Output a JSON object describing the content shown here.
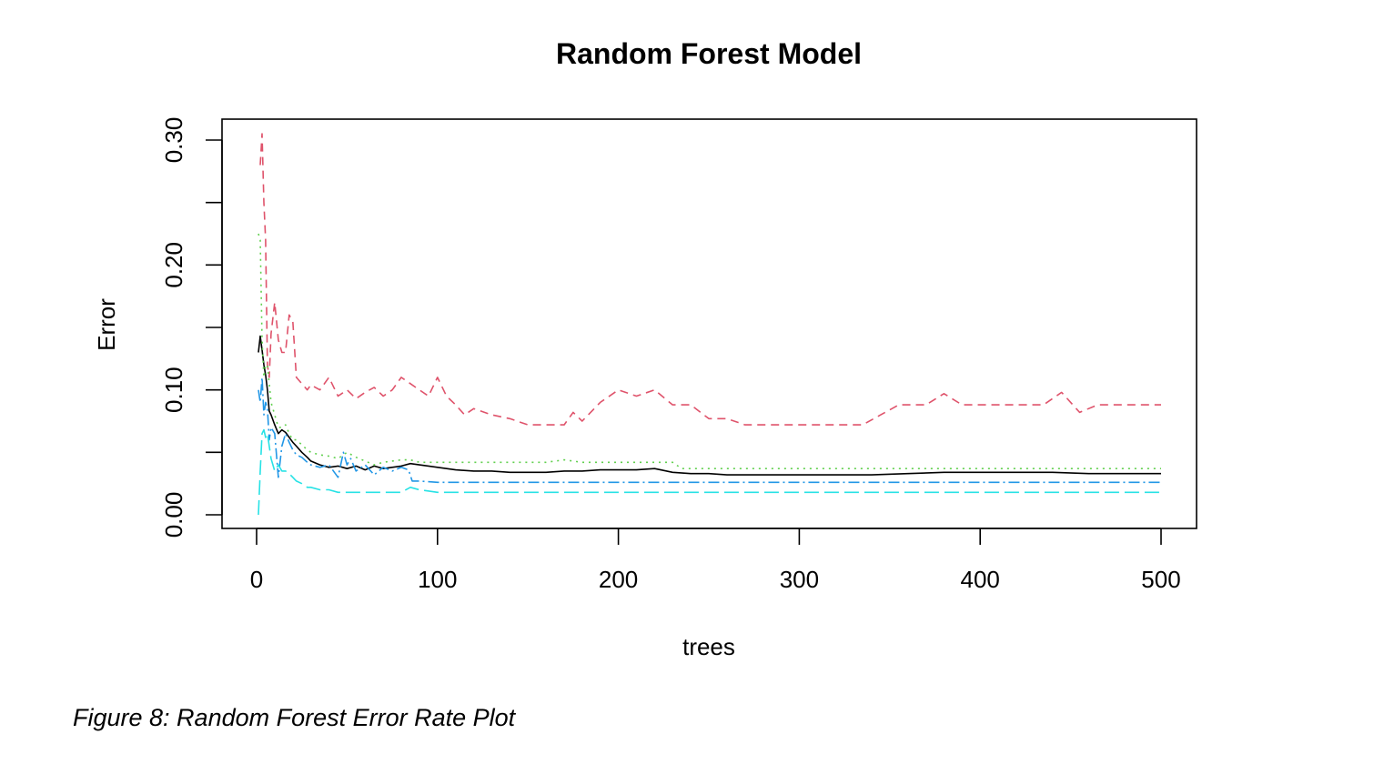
{
  "chart_data": {
    "type": "line",
    "title": "Random Forest Model",
    "xlabel": "trees",
    "ylabel": "Error",
    "xlim": [
      0,
      500
    ],
    "ylim": [
      0,
      0.3
    ],
    "x_ticks": [
      "0",
      "100",
      "200",
      "300",
      "400",
      "500"
    ],
    "y_ticks": [
      "0.00",
      "0.10",
      "0.20",
      "0.30"
    ],
    "grid": false,
    "legend": "none",
    "series": [
      {
        "color": "#000000",
        "dash": "",
        "x": [
          1,
          2,
          3,
          4,
          5,
          6,
          7,
          8,
          10,
          12,
          14,
          16,
          18,
          20,
          22,
          25,
          28,
          30,
          35,
          40,
          45,
          50,
          55,
          60,
          65,
          70,
          75,
          80,
          85,
          90,
          95,
          100,
          110,
          120,
          130,
          140,
          150,
          160,
          170,
          180,
          190,
          200,
          210,
          220,
          230,
          240,
          250,
          260,
          270,
          280,
          300,
          320,
          340,
          360,
          380,
          400,
          420,
          440,
          460,
          480,
          500
        ],
        "y": [
          0.13,
          0.143,
          0.132,
          0.12,
          0.112,
          0.1,
          0.083,
          0.08,
          0.072,
          0.065,
          0.068,
          0.066,
          0.062,
          0.058,
          0.055,
          0.05,
          0.046,
          0.043,
          0.04,
          0.038,
          0.039,
          0.037,
          0.039,
          0.036,
          0.039,
          0.037,
          0.038,
          0.039,
          0.041,
          0.04,
          0.039,
          0.038,
          0.036,
          0.035,
          0.035,
          0.034,
          0.034,
          0.034,
          0.035,
          0.035,
          0.036,
          0.036,
          0.036,
          0.037,
          0.034,
          0.033,
          0.033,
          0.032,
          0.032,
          0.032,
          0.032,
          0.032,
          0.032,
          0.033,
          0.034,
          0.034,
          0.034,
          0.034,
          0.033,
          0.033,
          0.033
        ]
      },
      {
        "color": "#DF536B",
        "dash": "9,6",
        "x": [
          2,
          3,
          4,
          5,
          6,
          7,
          8,
          10,
          12,
          14,
          16,
          18,
          20,
          22,
          25,
          28,
          30,
          35,
          40,
          45,
          50,
          55,
          60,
          65,
          70,
          75,
          80,
          85,
          90,
          95,
          100,
          105,
          110,
          115,
          120,
          130,
          140,
          150,
          160,
          170,
          175,
          180,
          190,
          200,
          210,
          220,
          230,
          240,
          250,
          260,
          270,
          280,
          300,
          320,
          335,
          345,
          355,
          370,
          380,
          390,
          400,
          420,
          435,
          445,
          455,
          465,
          475,
          500
        ],
        "y": [
          0.28,
          0.305,
          0.25,
          0.22,
          0.12,
          0.11,
          0.145,
          0.17,
          0.14,
          0.13,
          0.13,
          0.16,
          0.155,
          0.11,
          0.105,
          0.1,
          0.104,
          0.1,
          0.11,
          0.095,
          0.1,
          0.093,
          0.098,
          0.102,
          0.095,
          0.1,
          0.11,
          0.105,
          0.1,
          0.095,
          0.11,
          0.095,
          0.088,
          0.08,
          0.085,
          0.08,
          0.077,
          0.072,
          0.072,
          0.072,
          0.082,
          0.075,
          0.09,
          0.1,
          0.095,
          0.1,
          0.088,
          0.088,
          0.077,
          0.077,
          0.072,
          0.072,
          0.072,
          0.072,
          0.072,
          0.08,
          0.088,
          0.088,
          0.097,
          0.088,
          0.088,
          0.088,
          0.088,
          0.098,
          0.082,
          0.088,
          0.088,
          0.088
        ]
      },
      {
        "color": "#61D04F",
        "dash": "2,5",
        "x": [
          1,
          2,
          3,
          4,
          5,
          6,
          8,
          10,
          12,
          14,
          16,
          18,
          20,
          22,
          25,
          28,
          30,
          35,
          40,
          45,
          50,
          55,
          60,
          65,
          70,
          75,
          80,
          85,
          90,
          100,
          110,
          120,
          140,
          160,
          170,
          180,
          200,
          220,
          230,
          235,
          260,
          300,
          350,
          400,
          450,
          500
        ],
        "y": [
          0.225,
          0.22,
          0.14,
          0.11,
          0.12,
          0.12,
          0.09,
          0.08,
          0.07,
          0.07,
          0.072,
          0.065,
          0.06,
          0.06,
          0.056,
          0.052,
          0.05,
          0.048,
          0.047,
          0.045,
          0.05,
          0.046,
          0.043,
          0.04,
          0.042,
          0.043,
          0.044,
          0.044,
          0.042,
          0.042,
          0.042,
          0.042,
          0.042,
          0.042,
          0.044,
          0.042,
          0.042,
          0.042,
          0.042,
          0.037,
          0.037,
          0.037,
          0.037,
          0.037,
          0.037,
          0.037
        ]
      },
      {
        "color": "#2297E6",
        "dash": "12,4,2,4",
        "x": [
          1,
          2,
          3,
          4,
          5,
          6,
          7,
          8,
          10,
          12,
          14,
          16,
          18,
          20,
          22,
          25,
          28,
          30,
          35,
          40,
          45,
          48,
          50,
          52,
          55,
          60,
          65,
          70,
          75,
          80,
          84,
          86,
          90,
          100,
          200,
          300,
          400,
          500
        ],
        "y": [
          0.1,
          0.09,
          0.11,
          0.08,
          0.09,
          0.085,
          0.06,
          0.07,
          0.065,
          0.03,
          0.055,
          0.065,
          0.058,
          0.052,
          0.048,
          0.046,
          0.042,
          0.04,
          0.038,
          0.04,
          0.03,
          0.05,
          0.04,
          0.045,
          0.035,
          0.04,
          0.032,
          0.038,
          0.035,
          0.038,
          0.036,
          0.027,
          0.027,
          0.026,
          0.026,
          0.026,
          0.026,
          0.026
        ]
      },
      {
        "color": "#28E2E5",
        "dash": "16,6",
        "x": [
          1,
          2,
          3,
          4,
          5,
          6,
          7,
          8,
          10,
          12,
          14,
          16,
          18,
          20,
          22,
          25,
          28,
          30,
          35,
          40,
          45,
          50,
          60,
          70,
          80,
          85,
          90,
          100,
          200,
          300,
          400,
          500
        ],
        "y": [
          0.0,
          0.035,
          0.065,
          0.068,
          0.062,
          0.065,
          0.055,
          0.045,
          0.035,
          0.04,
          0.035,
          0.035,
          0.033,
          0.03,
          0.027,
          0.025,
          0.022,
          0.022,
          0.02,
          0.02,
          0.018,
          0.018,
          0.018,
          0.018,
          0.018,
          0.022,
          0.02,
          0.018,
          0.018,
          0.018,
          0.018,
          0.018
        ]
      }
    ]
  },
  "caption": "Figure 8: Random Forest Error Rate Plot"
}
